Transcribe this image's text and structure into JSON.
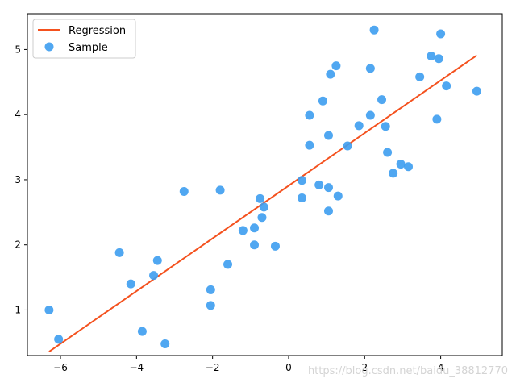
{
  "chart_data": {
    "type": "scatter",
    "title": "",
    "xlabel": "",
    "ylabel": "",
    "xlim": [
      -6.87,
      5.62
    ],
    "ylim": [
      0.3,
      5.55
    ],
    "xticks": [
      -6,
      -4,
      -2,
      0,
      2,
      4
    ],
    "xtick_labels": [
      "−6",
      "−4",
      "−2",
      "0",
      "2",
      "4"
    ],
    "yticks": [
      1,
      2,
      3,
      4,
      5
    ],
    "ytick_labels": [
      "1",
      "2",
      "3",
      "4",
      "5"
    ],
    "grid": false,
    "legend_position": "top-left",
    "series": [
      {
        "name": "Regression",
        "kind": "line",
        "color": "#f4511e",
        "x": [
          -6.3,
          4.95
        ],
        "y": [
          0.36,
          4.91
        ]
      },
      {
        "name": "Sample",
        "kind": "scatter",
        "color": "#3d9df0",
        "x": [
          -6.3,
          -6.05,
          -4.45,
          -4.15,
          -3.85,
          -3.55,
          -3.45,
          -3.25,
          -2.75,
          -2.05,
          -2.05,
          -1.8,
          -1.6,
          -1.2,
          -0.9,
          -0.9,
          -0.75,
          -0.7,
          -0.65,
          -0.35,
          0.35,
          0.35,
          0.55,
          0.55,
          0.8,
          0.9,
          1.05,
          1.05,
          1.05,
          1.1,
          1.25,
          1.3,
          1.55,
          1.85,
          2.15,
          2.15,
          2.25,
          2.45,
          2.55,
          2.6,
          2.75,
          2.95,
          3.15,
          3.45,
          3.75,
          3.9,
          3.95,
          4.0,
          4.15,
          4.95
        ],
        "y": [
          1.0,
          0.55,
          1.88,
          1.4,
          0.67,
          1.53,
          1.76,
          0.48,
          2.82,
          1.07,
          1.31,
          2.84,
          1.7,
          2.22,
          2.0,
          2.26,
          2.71,
          2.42,
          2.58,
          1.98,
          2.72,
          2.99,
          3.99,
          3.53,
          2.92,
          4.21,
          3.68,
          2.88,
          2.52,
          4.62,
          4.75,
          2.75,
          3.52,
          3.83,
          3.99,
          4.71,
          5.3,
          4.23,
          3.82,
          3.42,
          3.1,
          3.24,
          3.2,
          4.58,
          4.9,
          3.93,
          4.86,
          5.24,
          4.44,
          4.36
        ]
      }
    ]
  },
  "watermark": "https://blog.csdn.net/baidu_38812770"
}
